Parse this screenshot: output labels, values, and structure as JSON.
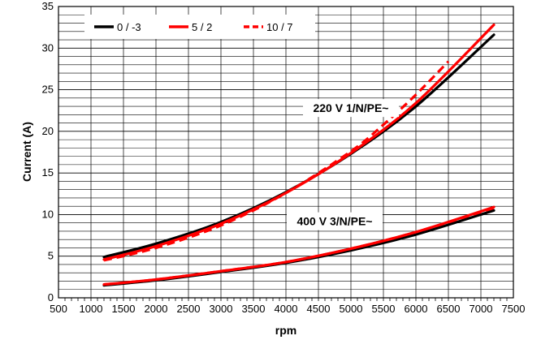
{
  "chart_data": {
    "type": "line",
    "title": "",
    "xlabel": "rpm",
    "ylabel": "Current (A)",
    "xlim": [
      500,
      7500
    ],
    "ylim": [
      0,
      35
    ],
    "x_ticks": [
      500,
      1000,
      1500,
      2000,
      2500,
      3000,
      3500,
      4000,
      4500,
      5000,
      5500,
      6000,
      6500,
      7000,
      7500
    ],
    "y_ticks": [
      0,
      5,
      10,
      15,
      20,
      25,
      30,
      35
    ],
    "grid": {
      "x_major": 500,
      "y_minor": 1
    },
    "legend": {
      "placement": "top-left"
    },
    "annotations": [
      {
        "text": "220 V 1/N/PE~",
        "x": 5000,
        "y": 22.8
      },
      {
        "text": "400 V 3/N/PE~",
        "x": 4750,
        "y": 9.2
      }
    ],
    "colors": {
      "black": "#000000",
      "red": "#ff0000",
      "grid": "#000000"
    },
    "series": [
      {
        "name": "0 / -3",
        "style": "solid",
        "color": "#000000",
        "group": "220 V 1/N/PE~",
        "x": [
          1200,
          2000,
          3000,
          4000,
          5000,
          6000,
          7200
        ],
        "y": [
          4.9,
          6.5,
          9.1,
          12.7,
          17.3,
          23.0,
          31.6
        ]
      },
      {
        "name": "5 / 2",
        "style": "solid",
        "color": "#ff0000",
        "group": "220 V 1/N/PE~",
        "x": [
          1200,
          2000,
          3000,
          4000,
          5000,
          6000,
          7200
        ],
        "y": [
          4.6,
          6.2,
          8.9,
          12.6,
          17.4,
          23.4,
          32.8
        ]
      },
      {
        "name": "10 / 7",
        "style": "dashed",
        "color": "#ff0000",
        "group": "220 V 1/N/PE~",
        "x": [
          1200,
          2000,
          3000,
          4000,
          5000,
          5500,
          6000,
          6500
        ],
        "y": [
          4.5,
          6.0,
          8.7,
          12.6,
          17.6,
          20.8,
          24.4,
          28.4
        ]
      },
      {
        "name": "0 / -3",
        "style": "solid",
        "color": "#000000",
        "group": "400 V 3/N/PE~",
        "x": [
          1200,
          2000,
          3000,
          4000,
          5000,
          6000,
          7200
        ],
        "y": [
          1.5,
          2.1,
          3.1,
          4.2,
          5.7,
          7.6,
          10.5
        ]
      },
      {
        "name": "5 / 2",
        "style": "solid",
        "color": "#ff0000",
        "group": "400 V 3/N/PE~",
        "x": [
          1200,
          2000,
          3000,
          4000,
          5000,
          6000,
          7200
        ],
        "y": [
          1.6,
          2.2,
          3.2,
          4.3,
          5.9,
          7.9,
          10.9
        ]
      },
      {
        "name": "10 / 7",
        "style": "dashed",
        "color": "#ff0000",
        "group": "400 V 3/N/PE~",
        "x": [
          1200,
          2000,
          3000,
          4000,
          5000,
          6000,
          7200
        ],
        "y": [
          1.6,
          2.2,
          3.2,
          4.3,
          5.9,
          7.9,
          10.8
        ]
      }
    ]
  }
}
